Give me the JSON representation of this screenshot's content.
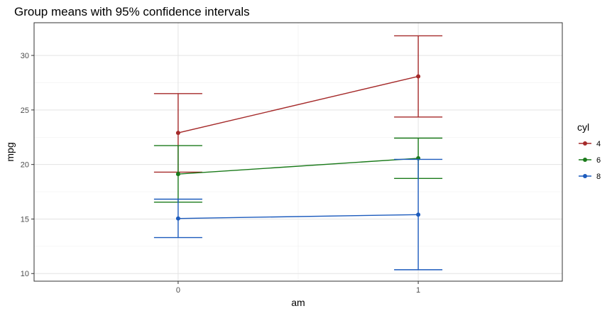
{
  "chart_data": {
    "type": "line",
    "title": "Group means with 95% confidence intervals",
    "xlabel": "am",
    "ylabel": "mpg",
    "categories": [
      "0",
      "1"
    ],
    "ylim": [
      9.3,
      33.0
    ],
    "yticks": [
      10,
      15,
      20,
      25,
      30
    ],
    "grid": true,
    "legend": {
      "title": "cyl",
      "placement": "right"
    },
    "series": [
      {
        "name": "4",
        "color": "#a52a2a",
        "values": [
          22.9,
          28.08
        ],
        "lower": [
          19.3,
          24.35
        ],
        "upper": [
          26.5,
          31.8
        ]
      },
      {
        "name": "6",
        "color": "#1a7a1a",
        "values": [
          19.12,
          20.57
        ],
        "lower": [
          16.55,
          18.72
        ],
        "upper": [
          21.73,
          22.42
        ]
      },
      {
        "name": "8",
        "color": "#1c5bbd",
        "values": [
          15.05,
          15.4
        ],
        "lower": [
          13.3,
          10.35
        ],
        "upper": [
          16.82,
          20.47
        ]
      }
    ]
  }
}
